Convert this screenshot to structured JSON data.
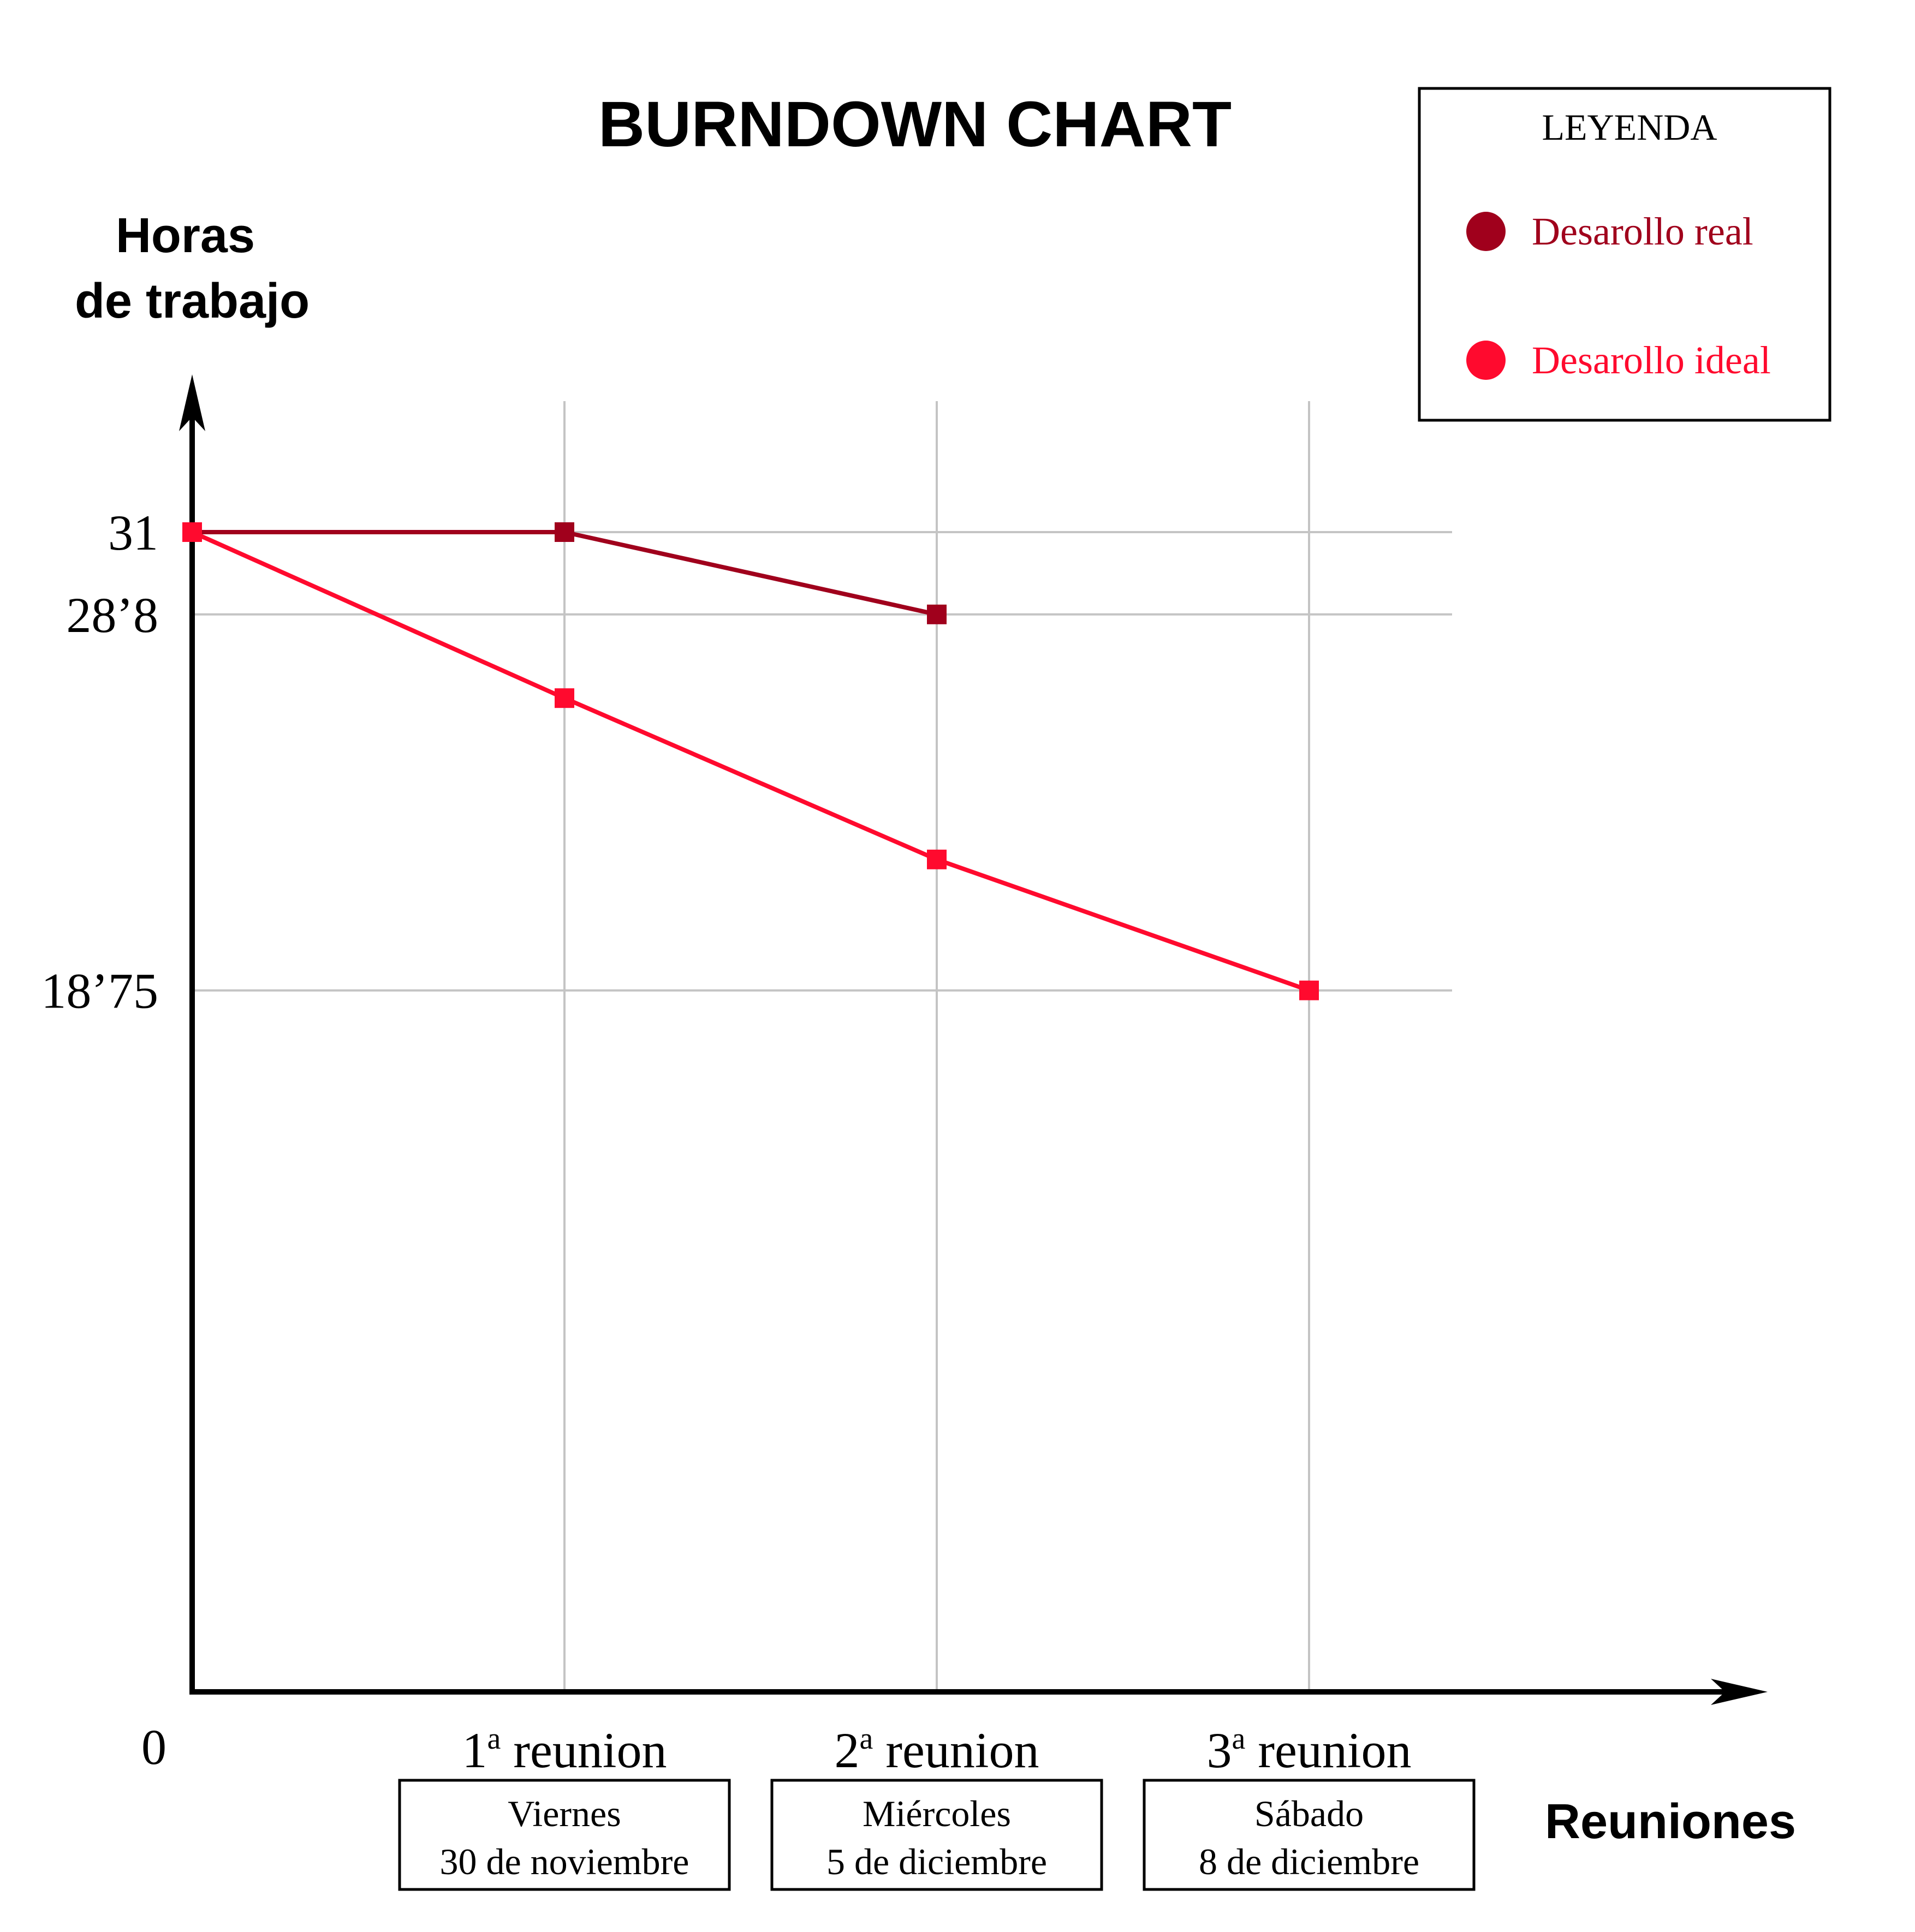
{
  "chart_data": {
    "type": "line",
    "title": "BURNDOWN CHART",
    "ylabel": [
      "Horas",
      "de trabajo"
    ],
    "xlabel": "Reuniones",
    "origin_label": "0",
    "ylim": [
      0,
      31
    ],
    "grid": true,
    "y_ticks": [
      {
        "value": 31,
        "label": "31"
      },
      {
        "value": 28.8,
        "label": "28’8"
      },
      {
        "value": 18.75,
        "label": "18’75"
      }
    ],
    "x_ticks": [
      {
        "index": 1,
        "ordinal": "1",
        "sup": "a",
        "word": "reunion",
        "day": "Viernes",
        "date": "30 de noviembre"
      },
      {
        "index": 2,
        "ordinal": "2",
        "sup": "a",
        "word": "reunion",
        "day": "Miércoles",
        "date": "5 de diciembre"
      },
      {
        "index": 3,
        "ordinal": "3",
        "sup": "a",
        "word": "reunion",
        "day": "Sábado",
        "date": "8 de diciembre"
      }
    ],
    "legend": {
      "title": "LEYENDA",
      "position": "top-right",
      "entries": [
        "Desarollo real",
        "Desarollo ideal"
      ]
    },
    "series": [
      {
        "name": "Desarollo real",
        "color": "#a0001c",
        "x": [
          0,
          1,
          2
        ],
        "y": [
          31,
          31,
          28.8
        ]
      },
      {
        "name": "Desarollo ideal",
        "color": "#ff0a2e",
        "x": [
          0,
          1,
          2,
          3
        ],
        "y": [
          31,
          26.5625,
          22.25,
          18.75
        ]
      }
    ]
  }
}
